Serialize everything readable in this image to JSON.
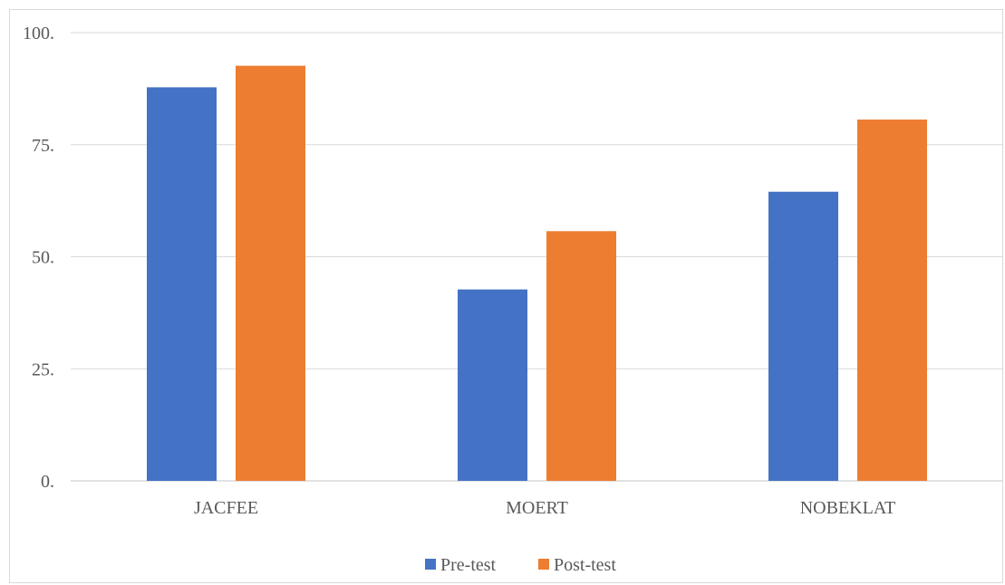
{
  "chart_data": {
    "type": "bar",
    "title": "",
    "xlabel": "",
    "ylabel": "",
    "categories": [
      "JACFEE",
      "MOERT",
      "NOBEKLAT"
    ],
    "series": [
      {
        "name": "Pre-test",
        "values": [
          87.8,
          42.7,
          64.5
        ],
        "color": "#4472c4"
      },
      {
        "name": "Post-test",
        "values": [
          92.6,
          55.7,
          80.6
        ],
        "color": "#ed7d31"
      }
    ],
    "ylim": [
      0,
      100
    ],
    "yticks": [
      {
        "value": 0,
        "label": "0."
      },
      {
        "value": 25,
        "label": "25."
      },
      {
        "value": 50,
        "label": "50."
      },
      {
        "value": 75,
        "label": "75."
      },
      {
        "value": 100,
        "label": "100."
      }
    ],
    "grid": true,
    "gridColor": "#d9d9d9",
    "legend": "bottom"
  }
}
